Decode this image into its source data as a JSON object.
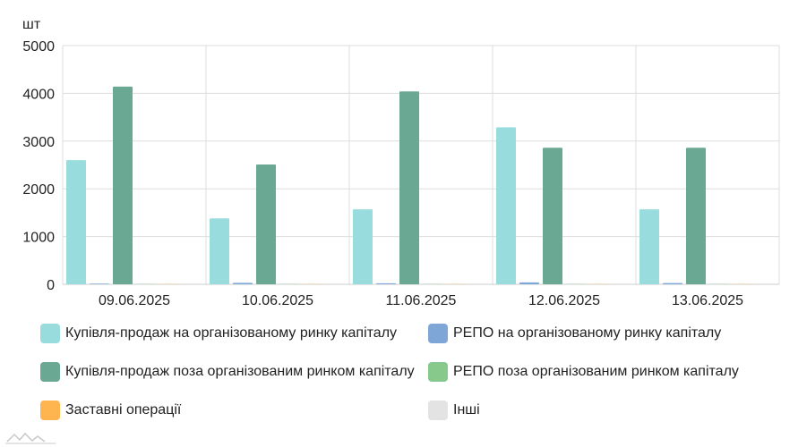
{
  "chart_data": {
    "type": "bar",
    "unit_label": "шт",
    "categories": [
      "09.06.2025",
      "10.06.2025",
      "11.06.2025",
      "12.06.2025",
      "13.06.2025"
    ],
    "ylim": [
      0,
      5000
    ],
    "yticks": [
      "0",
      "1000",
      "2000",
      "3000",
      "4000",
      "5000"
    ],
    "ytick_values": [
      0,
      1000,
      2000,
      3000,
      4000,
      5000
    ],
    "grid": true,
    "legend_position": "bottom",
    "series": [
      {
        "name": "Купівля-продаж на організованому ринку капіталу",
        "color": "#99dcdd",
        "values": [
          2600,
          1380,
          1570,
          3290,
          1570
        ]
      },
      {
        "name": "РЕПО на організованому ринку капіталу",
        "color": "#7ea6d6",
        "values": [
          15,
          30,
          20,
          40,
          25
        ]
      },
      {
        "name": "Купівля-продаж поза організованим ринком капіталу",
        "color": "#6aa893",
        "values": [
          4140,
          2510,
          4040,
          2860,
          2860
        ]
      },
      {
        "name": "РЕПО поза організованим ринком капіталу",
        "color": "#86c98a",
        "values": [
          5,
          5,
          5,
          5,
          5
        ]
      },
      {
        "name": "Заставні операції",
        "color": "#ffb54f",
        "values": [
          5,
          5,
          5,
          5,
          5
        ]
      },
      {
        "name": "Інші",
        "color": "#e3e3e3",
        "values": [
          0,
          0,
          0,
          0,
          0
        ]
      }
    ]
  }
}
